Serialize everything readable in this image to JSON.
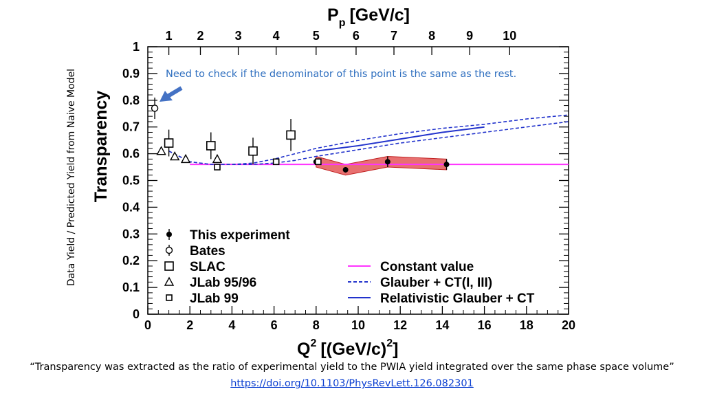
{
  "chart_data": {
    "type": "scatter",
    "xlabel_main": "Q",
    "xlabel_sup": "2",
    "xlabel_rest": "[(GeV/c)",
    "xlabel_rest_sup": "2",
    "xlabel_close": "]",
    "ylabel": "Transparency",
    "top_axis_label_main": "P",
    "top_axis_label_sub": "p",
    "top_axis_label_rest": "[GeV/c]",
    "side_label": "Data Yield / Predicted Yield from Naive Model",
    "xlim": [
      0,
      20
    ],
    "ylim": [
      0,
      1
    ],
    "x_ticks": [
      "0",
      "2",
      "4",
      "6",
      "8",
      "10",
      "12",
      "14",
      "16",
      "18",
      "20"
    ],
    "y_ticks": [
      "0",
      "0.1",
      "0.2",
      "0.3",
      "0.4",
      "0.5",
      "0.6",
      "0.7",
      "0.8",
      "0.9",
      "1"
    ],
    "top_ticks": [
      {
        "label": "1",
        "q2": 1.0
      },
      {
        "label": "2",
        "q2": 2.5
      },
      {
        "label": "3",
        "q2": 4.3
      },
      {
        "label": "4",
        "q2": 6.1
      },
      {
        "label": "5",
        "q2": 8.0
      },
      {
        "label": "6",
        "q2": 9.9
      },
      {
        "label": "7",
        "q2": 11.7
      },
      {
        "label": "8",
        "q2": 13.5
      },
      {
        "label": "9",
        "q2": 15.3
      },
      {
        "label": "10",
        "q2": 17.2
      }
    ],
    "series": [
      {
        "name": "This experiment",
        "marker": "filled-circle",
        "points": [
          {
            "x": 8.0,
            "y": 0.57,
            "err": 0.01
          },
          {
            "x": 9.4,
            "y": 0.54,
            "err": 0.01
          },
          {
            "x": 11.4,
            "y": 0.57,
            "err": 0.02
          },
          {
            "x": 14.2,
            "y": 0.56,
            "err": 0.02
          }
        ]
      },
      {
        "name": "Bates",
        "marker": "open-circle",
        "points": [
          {
            "x": 0.33,
            "y": 0.77,
            "err": 0.04
          }
        ]
      },
      {
        "name": "SLAC",
        "marker": "open-square-large",
        "points": [
          {
            "x": 1.0,
            "y": 0.64,
            "err": 0.05
          },
          {
            "x": 3.0,
            "y": 0.63,
            "err": 0.05
          },
          {
            "x": 5.0,
            "y": 0.61,
            "err": 0.05
          },
          {
            "x": 6.8,
            "y": 0.67,
            "err": 0.06
          }
        ]
      },
      {
        "name": "JLab 95/96",
        "marker": "open-triangle",
        "points": [
          {
            "x": 0.64,
            "y": 0.61,
            "err": 0.01
          },
          {
            "x": 1.28,
            "y": 0.59,
            "err": 0.01
          },
          {
            "x": 1.8,
            "y": 0.58,
            "err": 0.01
          },
          {
            "x": 3.3,
            "y": 0.58,
            "err": 0.01
          }
        ]
      },
      {
        "name": "JLab 99",
        "marker": "open-square-small",
        "points": [
          {
            "x": 3.3,
            "y": 0.55,
            "err": 0.01
          },
          {
            "x": 6.1,
            "y": 0.57,
            "err": 0.01
          },
          {
            "x": 8.1,
            "y": 0.57,
            "err": 0.01
          }
        ]
      }
    ],
    "curves": [
      {
        "name": "Constant value",
        "style": "solid",
        "color": "#ff33ff",
        "x": [
          2,
          20
        ],
        "y": [
          0.56,
          0.56
        ]
      },
      {
        "name": "Glauber + CT(I, III)",
        "style": "dashed",
        "color": "#2233cc",
        "x": [
          1.0,
          1.5,
          2.0,
          3.0,
          4.0,
          5.0,
          6.0,
          7.0,
          8.0,
          10.0,
          12.0,
          14.0,
          16.0,
          18.0,
          20.0
        ],
        "y": [
          0.61,
          0.59,
          0.57,
          0.56,
          0.56,
          0.565,
          0.58,
          0.6,
          0.62,
          0.65,
          0.675,
          0.695,
          0.71,
          0.73,
          0.745
        ]
      },
      {
        "name": "",
        "style": "dashed",
        "color": "#2233cc",
        "x": [
          1.0,
          1.5,
          2.0,
          3.0,
          4.0,
          5.0,
          6.0,
          7.0,
          8.0,
          10.0,
          12.0,
          14.0,
          16.0,
          18.0,
          20.0
        ],
        "y": [
          0.61,
          0.59,
          0.57,
          0.56,
          0.56,
          0.56,
          0.565,
          0.575,
          0.59,
          0.615,
          0.64,
          0.66,
          0.68,
          0.7,
          0.72
        ]
      },
      {
        "name": "Relativistic Glauber + CT",
        "style": "solid",
        "color": "#2233cc",
        "x": [
          8.0,
          10.0,
          12.0,
          14.0,
          16.0
        ],
        "y": [
          0.61,
          0.63,
          0.655,
          0.68,
          0.7
        ]
      }
    ],
    "band": {
      "color": "#e04040",
      "upper": [
        {
          "x": 8.0,
          "y": 0.59
        },
        {
          "x": 9.4,
          "y": 0.56
        },
        {
          "x": 11.4,
          "y": 0.59
        },
        {
          "x": 14.2,
          "y": 0.58
        }
      ],
      "lower": [
        {
          "x": 8.0,
          "y": 0.55
        },
        {
          "x": 9.4,
          "y": 0.52
        },
        {
          "x": 11.4,
          "y": 0.55
        },
        {
          "x": 14.2,
          "y": 0.54
        }
      ]
    },
    "legend_left": [
      "This experiment",
      "Bates",
      "SLAC",
      "JLab 95/96",
      "JLab 99"
    ],
    "legend_right": [
      "Constant value",
      "Glauber + CT(I, III)",
      "Relativistic Glauber + CT"
    ],
    "annotation": {
      "text": "Need to check if the denominator of this point is the same as the rest.",
      "color": "#2f6fbf",
      "arrow_color": "#4472c4",
      "arrow_target": "Bates point"
    }
  },
  "caption": "“Transparency was extracted as the ratio of experimental yield to the PWIA yield integrated over the same phase space volume”",
  "doi": "https://doi.org/10.1103/PhysRevLett.126.082301"
}
